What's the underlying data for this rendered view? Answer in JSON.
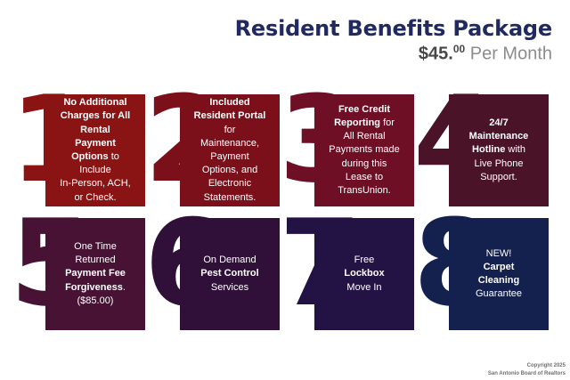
{
  "header": {
    "title": "Resident Benefits Package",
    "price_amount": "$45.",
    "price_cents": "00",
    "price_suffix": " Per Month"
  },
  "colors": {
    "title": "#202a60",
    "price_amount": "#474747",
    "price_suffix": "#8c8c8c"
  },
  "cards": [
    {
      "number": "1",
      "color": "#8a1413",
      "segments": [
        {
          "text": "No Additional\nCharges for All\nRental\nPayment\nOptions",
          "bold": true
        },
        {
          "text": " to\nInclude\nIn-Person, ACH,\nor Check.",
          "bold": false
        }
      ]
    },
    {
      "number": "2",
      "color": "#7b101b",
      "segments": [
        {
          "text": "Included\nResident Portal",
          "bold": true
        },
        {
          "text": "\nfor\nMaintenance,\nPayment\nOptions, and\nElectronic\nStatements.",
          "bold": false
        }
      ]
    },
    {
      "number": "3",
      "color": "#6e0f26",
      "segments": [
        {
          "text": "Free Credit\nReporting",
          "bold": true
        },
        {
          "text": " for\nAll Rental\nPayments made\nduring this\nLease to\nTransUnion.",
          "bold": false
        }
      ]
    },
    {
      "number": "4",
      "color": "#4b1328",
      "segments": [
        {
          "text": "24/7\nMaintenance\nHotline",
          "bold": true
        },
        {
          "text": " with\nLive Phone\nSupport.",
          "bold": false
        }
      ]
    },
    {
      "number": "5",
      "color": "#471233",
      "segments": [
        {
          "text": "One Time\nReturned\n",
          "bold": false
        },
        {
          "text": "Payment Fee\nForgiveness",
          "bold": true
        },
        {
          "text": ".\n($85.00)",
          "bold": false
        }
      ]
    },
    {
      "number": "6",
      "color": "#301039",
      "segments": [
        {
          "text": "On Demand\n",
          "bold": false
        },
        {
          "text": "Pest Control",
          "bold": true
        },
        {
          "text": "\nServices",
          "bold": false
        }
      ]
    },
    {
      "number": "7",
      "color": "#231345",
      "segments": [
        {
          "text": "Free\n",
          "bold": false
        },
        {
          "text": "Lockbox",
          "bold": true
        },
        {
          "text": "\nMove In",
          "bold": false
        }
      ]
    },
    {
      "number": "8",
      "color": "#14204e",
      "segments": [
        {
          "text": "NEW!\n",
          "bold": false
        },
        {
          "text": "Carpet\nCleaning",
          "bold": true
        },
        {
          "text": "\nGuarantee",
          "bold": false
        }
      ]
    }
  ],
  "footer": {
    "line1": "Copyright 2025",
    "line2": "San Antonio Board of Realtors"
  }
}
